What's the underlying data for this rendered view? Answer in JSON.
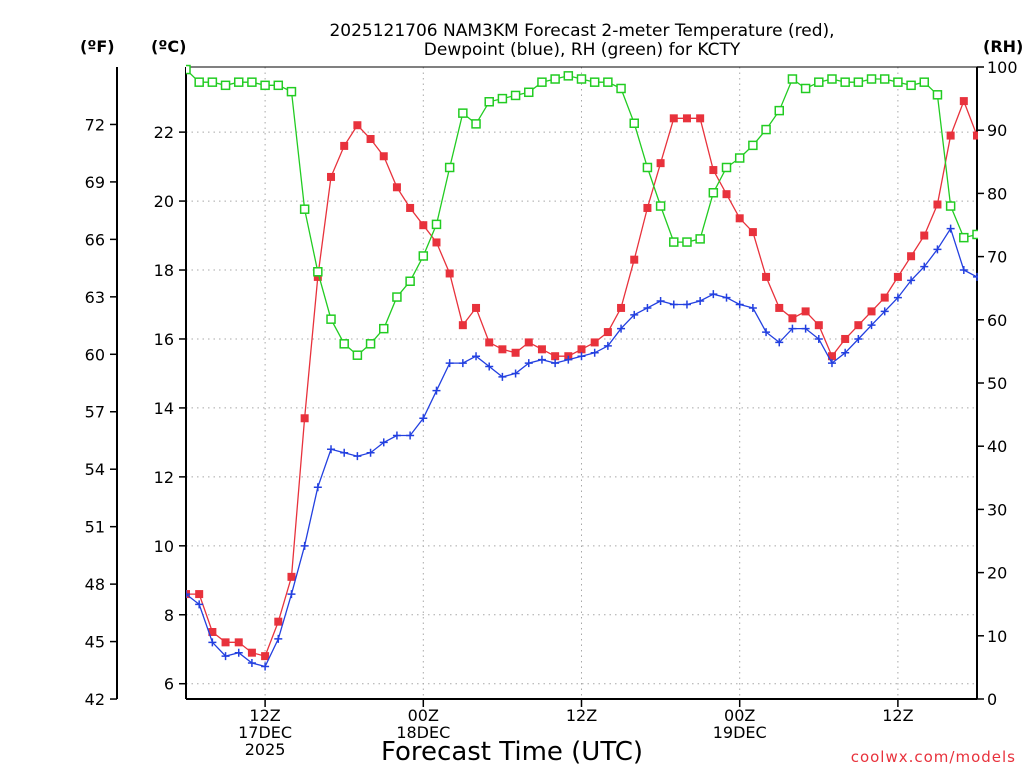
{
  "chart_data": {
    "type": "line",
    "title": [
      "2025121706 NAM3KM Forecast 2-meter Temperature (red),",
      "Dewpoint (blue), RH (green) for KCTY"
    ],
    "xlabel": "Forecast Time (UTC)",
    "credit": "coolwx.com/models",
    "unit_labels": {
      "fahrenheit": "(ºF)",
      "celsius": "(ºC)",
      "rh": "(RH)"
    },
    "x_units": "forecast hour",
    "xlim": [
      0,
      60
    ],
    "x_ticks": [
      {
        "hour": 6,
        "lines": [
          "12Z",
          "17DEC",
          "2025"
        ]
      },
      {
        "hour": 18,
        "lines": [
          "00Z",
          "18DEC"
        ]
      },
      {
        "hour": 30,
        "lines": [
          "12Z"
        ]
      },
      {
        "hour": 42,
        "lines": [
          "00Z",
          "19DEC"
        ]
      },
      {
        "hour": 54,
        "lines": [
          "12Z"
        ]
      }
    ],
    "ylim_celsius": [
      5.5567,
      23.8889
    ],
    "y_ticks_celsius": [
      6,
      8,
      10,
      12,
      14,
      16,
      18,
      20,
      22
    ],
    "y_ticks_fahrenheit": [
      42,
      45,
      48,
      51,
      54,
      57,
      60,
      63,
      66,
      69,
      72
    ],
    "ylim_rh": [
      0,
      100
    ],
    "y_ticks_rh": [
      0,
      10,
      20,
      30,
      40,
      50,
      60,
      70,
      80,
      90,
      100
    ],
    "grid": true,
    "series": [
      {
        "name": "Temperature",
        "axis": "celsius",
        "color": "#e8323c",
        "marker": "filled-square",
        "x": [
          0,
          1,
          2,
          3,
          4,
          5,
          6,
          7,
          8,
          9,
          10,
          11,
          12,
          13,
          14,
          15,
          16,
          17,
          18,
          19,
          20,
          21,
          22,
          23,
          24,
          25,
          26,
          27,
          28,
          29,
          30,
          31,
          32,
          33,
          34,
          35,
          36,
          37,
          38,
          39,
          40,
          41,
          42,
          43,
          44,
          45,
          46,
          47,
          48,
          49,
          50,
          51,
          52,
          53,
          54,
          55,
          56,
          57,
          58,
          59,
          60
        ],
        "values": [
          8.6,
          8.6,
          7.5,
          7.2,
          7.2,
          6.9,
          6.8,
          7.8,
          9.1,
          13.7,
          17.8,
          20.7,
          21.6,
          22.2,
          21.8,
          21.3,
          20.4,
          19.8,
          19.3,
          18.8,
          17.9,
          16.4,
          16.9,
          15.9,
          15.7,
          15.6,
          15.9,
          15.7,
          15.5,
          15.5,
          15.7,
          15.9,
          16.2,
          16.9,
          18.3,
          19.8,
          21.1,
          22.4,
          22.4,
          22.4,
          20.9,
          20.2,
          19.5,
          19.1,
          17.8,
          16.9,
          16.6,
          16.8,
          16.4,
          15.5,
          16.0,
          16.4,
          16.8,
          17.2,
          17.8,
          18.4,
          19.0,
          19.9,
          21.9,
          22.9,
          21.9
        ]
      },
      {
        "name": "Dewpoint",
        "axis": "celsius",
        "color": "#2340e0",
        "marker": "plus",
        "x": [
          0,
          1,
          2,
          3,
          4,
          5,
          6,
          7,
          8,
          9,
          10,
          11,
          12,
          13,
          14,
          15,
          16,
          17,
          18,
          19,
          20,
          21,
          22,
          23,
          24,
          25,
          26,
          27,
          28,
          29,
          30,
          31,
          32,
          33,
          34,
          35,
          36,
          37,
          38,
          39,
          40,
          41,
          42,
          43,
          44,
          45,
          46,
          47,
          48,
          49,
          50,
          51,
          52,
          53,
          54,
          55,
          56,
          57,
          58,
          59,
          60
        ],
        "values": [
          8.6,
          8.3,
          7.2,
          6.8,
          6.9,
          6.6,
          6.5,
          7.3,
          8.6,
          10.0,
          11.7,
          12.8,
          12.7,
          12.6,
          12.7,
          13.0,
          13.2,
          13.2,
          13.7,
          14.5,
          15.3,
          15.3,
          15.5,
          15.2,
          14.9,
          15.0,
          15.3,
          15.4,
          15.3,
          15.4,
          15.5,
          15.6,
          15.8,
          16.3,
          16.7,
          16.9,
          17.1,
          17.0,
          17.0,
          17.1,
          17.3,
          17.2,
          17.0,
          16.9,
          16.2,
          15.9,
          16.3,
          16.3,
          16.0,
          15.3,
          15.6,
          16.0,
          16.4,
          16.8,
          17.2,
          17.7,
          18.1,
          18.6,
          19.2,
          18.0,
          17.8
        ]
      },
      {
        "name": "RH",
        "axis": "rh",
        "color": "#22cc22",
        "marker": "open-square",
        "x": [
          0,
          1,
          2,
          3,
          4,
          5,
          6,
          7,
          8,
          9,
          10,
          11,
          12,
          13,
          14,
          15,
          16,
          17,
          18,
          19,
          20,
          21,
          22,
          23,
          24,
          25,
          26,
          27,
          28,
          29,
          30,
          31,
          32,
          33,
          34,
          35,
          36,
          37,
          38,
          39,
          40,
          41,
          42,
          43,
          44,
          45,
          46,
          47,
          48,
          49,
          50,
          51,
          52,
          53,
          54,
          55,
          56,
          57,
          58,
          59,
          60
        ],
        "values": [
          99.6,
          97.6,
          97.6,
          97.1,
          97.6,
          97.6,
          97.1,
          97.1,
          96.1,
          77.5,
          67.6,
          60.1,
          56.2,
          54.4,
          56.2,
          58.6,
          63.6,
          66.1,
          70.1,
          75.1,
          84.1,
          92.7,
          91.0,
          94.5,
          95.0,
          95.5,
          96.0,
          97.6,
          98.1,
          98.6,
          98.1,
          97.6,
          97.6,
          96.6,
          91.1,
          84.1,
          78.0,
          72.3,
          72.3,
          72.8,
          80.1,
          84.1,
          85.6,
          87.6,
          90.1,
          93.1,
          98.1,
          96.6,
          97.6,
          98.1,
          97.6,
          97.6,
          98.1,
          98.1,
          97.6,
          97.1,
          97.6,
          95.6,
          78.0,
          73.0,
          73.5
        ]
      }
    ]
  }
}
